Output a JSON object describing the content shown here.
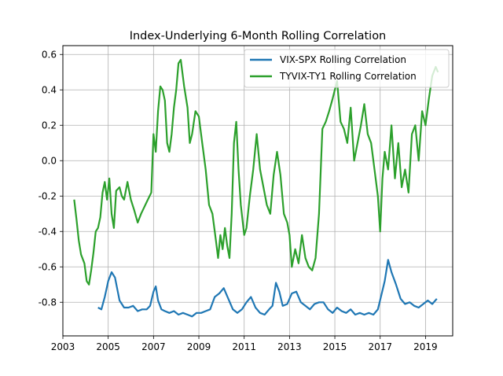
{
  "chart_data": {
    "type": "line",
    "title": "Index-Underlying 6-Month Rolling Correlation",
    "xlabel": "",
    "ylabel": "",
    "xlim": [
      2003.0,
      2020.2
    ],
    "ylim": [
      -0.99,
      0.65
    ],
    "x_ticks": [
      2003,
      2005,
      2007,
      2009,
      2011,
      2013,
      2015,
      2017,
      2019
    ],
    "y_ticks": [
      -0.8,
      -0.6,
      -0.4,
      -0.2,
      0.0,
      0.2,
      0.4,
      0.6
    ],
    "grid": true,
    "legend_position": "top-right",
    "series": [
      {
        "name": "VIX-SPX Rolling Correlation",
        "color": "#1f77b4",
        "x": [
          2004.55,
          2004.7,
          2004.85,
          2005.0,
          2005.15,
          2005.3,
          2005.5,
          2005.7,
          2005.9,
          2006.1,
          2006.3,
          2006.5,
          2006.7,
          2006.85,
          2007.0,
          2007.1,
          2007.2,
          2007.35,
          2007.5,
          2007.7,
          2007.9,
          2008.1,
          2008.3,
          2008.5,
          2008.7,
          2008.9,
          2009.1,
          2009.3,
          2009.5,
          2009.7,
          2009.9,
          2010.1,
          2010.3,
          2010.5,
          2010.7,
          2010.9,
          2011.1,
          2011.3,
          2011.5,
          2011.7,
          2011.9,
          2012.1,
          2012.25,
          2012.4,
          2012.55,
          2012.7,
          2012.9,
          2013.1,
          2013.3,
          2013.5,
          2013.7,
          2013.9,
          2014.1,
          2014.3,
          2014.5,
          2014.7,
          2014.9,
          2015.1,
          2015.3,
          2015.5,
          2015.7,
          2015.9,
          2016.1,
          2016.3,
          2016.5,
          2016.7,
          2016.9,
          2017.05,
          2017.2,
          2017.35,
          2017.5,
          2017.7,
          2017.9,
          2018.1,
          2018.3,
          2018.5,
          2018.7,
          2018.9,
          2019.1,
          2019.3,
          2019.5
        ],
        "values": [
          -0.83,
          -0.84,
          -0.77,
          -0.68,
          -0.63,
          -0.66,
          -0.79,
          -0.83,
          -0.83,
          -0.82,
          -0.85,
          -0.84,
          -0.84,
          -0.82,
          -0.74,
          -0.71,
          -0.79,
          -0.84,
          -0.85,
          -0.86,
          -0.85,
          -0.87,
          -0.86,
          -0.87,
          -0.88,
          -0.86,
          -0.86,
          -0.85,
          -0.84,
          -0.77,
          -0.75,
          -0.72,
          -0.78,
          -0.84,
          -0.86,
          -0.84,
          -0.8,
          -0.77,
          -0.83,
          -0.86,
          -0.87,
          -0.84,
          -0.82,
          -0.69,
          -0.74,
          -0.82,
          -0.81,
          -0.75,
          -0.74,
          -0.8,
          -0.82,
          -0.84,
          -0.81,
          -0.8,
          -0.8,
          -0.84,
          -0.86,
          -0.83,
          -0.85,
          -0.86,
          -0.84,
          -0.87,
          -0.86,
          -0.87,
          -0.86,
          -0.87,
          -0.84,
          -0.76,
          -0.68,
          -0.56,
          -0.63,
          -0.7,
          -0.78,
          -0.81,
          -0.8,
          -0.82,
          -0.83,
          -0.81,
          -0.79,
          -0.81,
          -0.78
        ]
      },
      {
        "name": "TYVIX-TY1 Rolling Correlation",
        "color": "#2ca02c",
        "x": [
          2003.5,
          2003.6,
          2003.7,
          2003.8,
          2003.95,
          2004.05,
          2004.15,
          2004.25,
          2004.35,
          2004.45,
          2004.55,
          2004.65,
          2004.75,
          2004.85,
          2004.95,
          2005.05,
          2005.15,
          2005.25,
          2005.35,
          2005.5,
          2005.6,
          2005.7,
          2005.85,
          2006.0,
          2006.15,
          2006.3,
          2006.45,
          2006.6,
          2006.75,
          2006.9,
          2007.0,
          2007.1,
          2007.2,
          2007.3,
          2007.4,
          2007.5,
          2007.6,
          2007.7,
          2007.8,
          2007.9,
          2008.0,
          2008.1,
          2008.2,
          2008.35,
          2008.5,
          2008.6,
          2008.7,
          2008.85,
          2009.0,
          2009.15,
          2009.3,
          2009.45,
          2009.6,
          2009.75,
          2009.85,
          2009.95,
          2010.05,
          2010.15,
          2010.25,
          2010.35,
          2010.45,
          2010.55,
          2010.65,
          2010.75,
          2010.85,
          2011.0,
          2011.1,
          2011.25,
          2011.4,
          2011.55,
          2011.7,
          2011.85,
          2012.0,
          2012.15,
          2012.3,
          2012.45,
          2012.6,
          2012.75,
          2012.9,
          2013.0,
          2013.1,
          2013.25,
          2013.4,
          2013.55,
          2013.7,
          2013.85,
          2014.0,
          2014.15,
          2014.3,
          2014.45,
          2014.6,
          2014.75,
          2014.9,
          2015.0,
          2015.1,
          2015.25,
          2015.4,
          2015.55,
          2015.7,
          2015.85,
          2016.0,
          2016.15,
          2016.3,
          2016.45,
          2016.6,
          2016.75,
          2016.9,
          2017.0,
          2017.1,
          2017.2,
          2017.35,
          2017.5,
          2017.65,
          2017.8,
          2017.95,
          2018.1,
          2018.25,
          2018.4,
          2018.55,
          2018.7,
          2018.85,
          2019.0,
          2019.15,
          2019.3,
          2019.45,
          2019.55
        ],
        "values": [
          -0.22,
          -0.33,
          -0.45,
          -0.53,
          -0.58,
          -0.68,
          -0.7,
          -0.62,
          -0.52,
          -0.4,
          -0.38,
          -0.32,
          -0.18,
          -0.12,
          -0.22,
          -0.1,
          -0.3,
          -0.38,
          -0.17,
          -0.15,
          -0.2,
          -0.22,
          -0.12,
          -0.22,
          -0.28,
          -0.35,
          -0.3,
          -0.26,
          -0.22,
          -0.18,
          0.15,
          0.05,
          0.28,
          0.42,
          0.4,
          0.34,
          0.1,
          0.05,
          0.15,
          0.3,
          0.4,
          0.55,
          0.57,
          0.42,
          0.3,
          0.1,
          0.15,
          0.28,
          0.25,
          0.1,
          -0.05,
          -0.25,
          -0.3,
          -0.45,
          -0.55,
          -0.42,
          -0.5,
          -0.38,
          -0.48,
          -0.55,
          -0.3,
          0.1,
          0.22,
          -0.05,
          -0.25,
          -0.42,
          -0.38,
          -0.2,
          -0.05,
          0.15,
          -0.05,
          -0.15,
          -0.25,
          -0.3,
          -0.08,
          0.05,
          -0.08,
          -0.3,
          -0.35,
          -0.42,
          -0.6,
          -0.5,
          -0.58,
          -0.42,
          -0.55,
          -0.6,
          -0.62,
          -0.55,
          -0.3,
          0.18,
          0.22,
          0.28,
          0.35,
          0.4,
          0.45,
          0.22,
          0.18,
          0.1,
          0.3,
          0.0,
          0.1,
          0.2,
          0.32,
          0.15,
          0.1,
          -0.05,
          -0.2,
          -0.4,
          -0.1,
          0.05,
          -0.05,
          0.2,
          -0.1,
          0.1,
          -0.15,
          -0.05,
          -0.18,
          0.15,
          0.2,
          0.0,
          0.28,
          0.2,
          0.35,
          0.48,
          0.53,
          0.5
        ]
      }
    ]
  }
}
